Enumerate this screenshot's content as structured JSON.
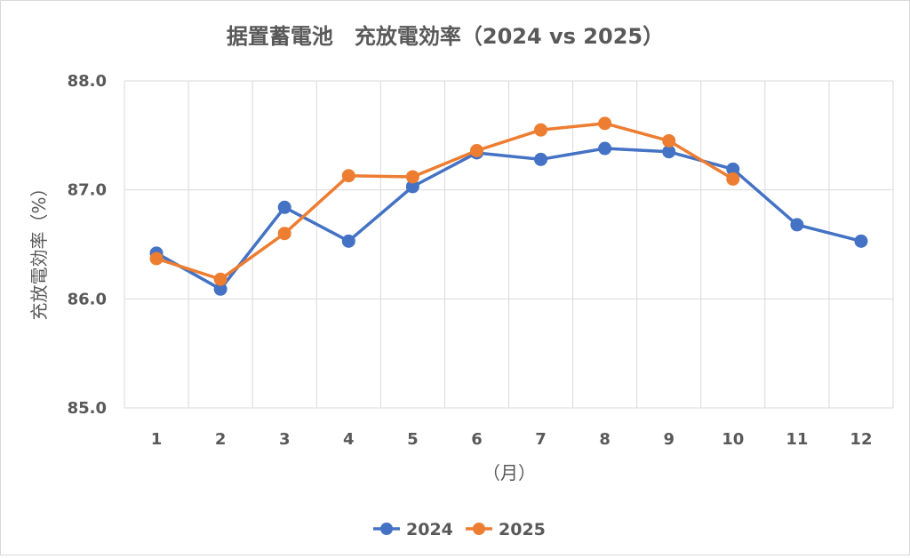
{
  "chart_data": {
    "type": "line",
    "title": "据置蓄電池　充放電効率（2024 vs 2025）",
    "xlabel": "（月）",
    "ylabel": "充放電効率（%）",
    "categories": [
      "1",
      "2",
      "3",
      "4",
      "5",
      "6",
      "7",
      "8",
      "9",
      "10",
      "11",
      "12"
    ],
    "ylim": [
      85.0,
      88.0
    ],
    "y_ticks": [
      "85.0",
      "86.0",
      "87.0",
      "88.0"
    ],
    "grid": true,
    "legend_position": "bottom",
    "series": [
      {
        "name": "2024",
        "color": "#4472c4",
        "values": [
          86.42,
          86.09,
          86.84,
          86.53,
          87.03,
          87.34,
          87.28,
          87.38,
          87.35,
          87.19,
          86.68,
          86.53
        ]
      },
      {
        "name": "2025",
        "color": "#ed7d31",
        "values": [
          86.37,
          86.18,
          86.6,
          87.13,
          87.12,
          87.36,
          87.55,
          87.61,
          87.45,
          87.1,
          null,
          null
        ]
      }
    ]
  }
}
